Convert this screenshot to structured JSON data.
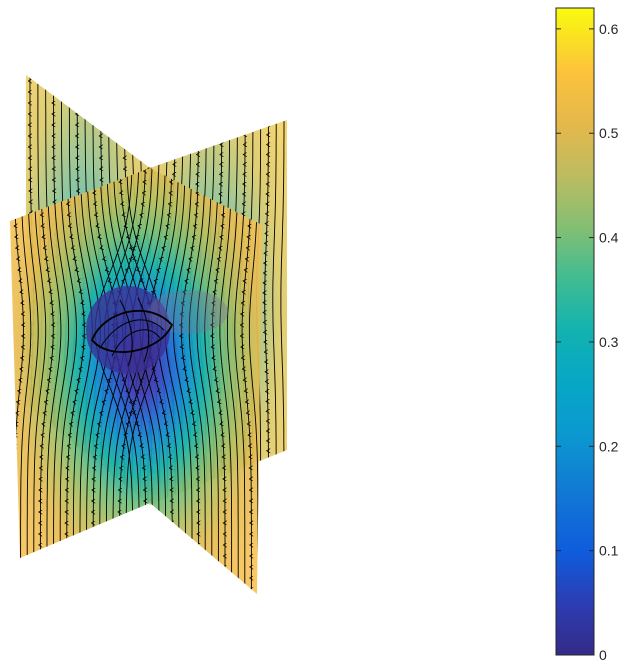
{
  "chart_data": {
    "type": "heatmap",
    "title": "",
    "xlabel": "",
    "ylabel": "",
    "colormap": "parula",
    "colorbar": {
      "location": "right",
      "clim": [
        0,
        0.62
      ],
      "ticks": [
        0,
        0.1,
        0.2,
        0.3,
        0.4,
        0.5,
        0.6
      ],
      "tick_labels": [
        "0",
        "0.1",
        "0.2",
        "0.3",
        "0.4",
        "0.5",
        "0.6"
      ]
    },
    "planes": [
      {
        "name": "",
        "orientation": "x-z slice"
      },
      {
        "name": "",
        "orientation": "y-z slice"
      }
    ],
    "features": {
      "streamlines": true,
      "streamline_color": "#000000",
      "central_minimum_value": 0.02,
      "edge_value": 0.55
    },
    "colors": {
      "parula_low": "#352a87",
      "parula_mid": "#12beb9",
      "parula_high": "#f9fb0e",
      "streamline": "#000000"
    }
  }
}
